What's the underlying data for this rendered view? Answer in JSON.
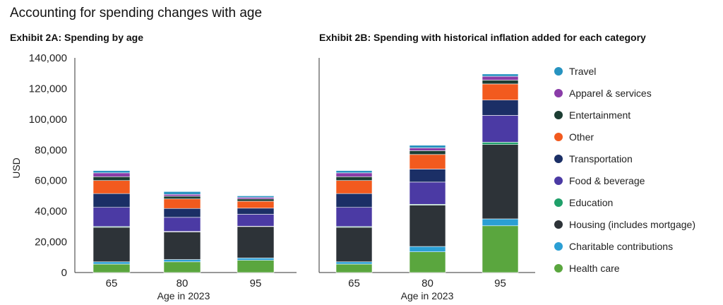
{
  "title": "Accounting for spending changes with age",
  "colors": {
    "Health care": "#5aa63e",
    "Charitable contributions": "#2b9fd4",
    "Housing (includes mortgage)": "#2d3338",
    "Education": "#1fa06a",
    "Food & beverage": "#4b3aa4",
    "Transportation": "#1b2f66",
    "Other": "#f25a1e",
    "Entertainment": "#1c3d33",
    "Apparel & services": "#8a3ca8",
    "Travel": "#2793c0"
  },
  "legend": [
    "Travel",
    "Apparel & services",
    "Entertainment",
    "Other",
    "Transportation",
    "Food & beverage",
    "Education",
    "Housing (includes mortgage)",
    "Charitable contributions",
    "Health care"
  ],
  "chart_data": [
    {
      "type": "bar",
      "stacked": true,
      "title": "Exhibit 2A: Spending by age",
      "xlabel": "Age in 2023",
      "ylabel": "USD",
      "ylim": [
        0,
        140000
      ],
      "yticks": [
        "0",
        "20,000",
        "40,000",
        "60,000",
        "80,000",
        "100,000",
        "120,000",
        "140,000"
      ],
      "categories": [
        "65",
        "80",
        "95"
      ],
      "series": [
        {
          "name": "Health care",
          "values": [
            5500,
            7000,
            8000
          ]
        },
        {
          "name": "Charitable contributions",
          "values": [
            1500,
            1500,
            1500
          ]
        },
        {
          "name": "Housing (includes mortgage)",
          "values": [
            22500,
            18000,
            20500
          ]
        },
        {
          "name": "Education",
          "values": [
            500,
            300,
            200
          ]
        },
        {
          "name": "Food & beverage",
          "values": [
            12500,
            9200,
            7800
          ]
        },
        {
          "name": "Transportation",
          "values": [
            9000,
            5800,
            4000
          ]
        },
        {
          "name": "Other",
          "values": [
            8500,
            6200,
            4500
          ]
        },
        {
          "name": "Entertainment",
          "values": [
            2500,
            1800,
            1500
          ]
        },
        {
          "name": "Apparel & services",
          "values": [
            2500,
            1200,
            1000
          ]
        },
        {
          "name": "Travel",
          "values": [
            1500,
            1800,
            1000
          ]
        }
      ]
    },
    {
      "type": "bar",
      "stacked": true,
      "title": "Exhibit 2B: Spending with historical inflation added for each category",
      "xlabel": "Age in 2023",
      "ylim": [
        0,
        140000
      ],
      "categories": [
        "65",
        "80",
        "95"
      ],
      "series": [
        {
          "name": "Health care",
          "values": [
            5500,
            13500,
            30500
          ]
        },
        {
          "name": "Charitable contributions",
          "values": [
            1500,
            3500,
            4500
          ]
        },
        {
          "name": "Housing (includes mortgage)",
          "values": [
            22500,
            27000,
            48500
          ]
        },
        {
          "name": "Education",
          "values": [
            500,
            500,
            1500
          ]
        },
        {
          "name": "Food & beverage",
          "values": [
            12500,
            14500,
            17500
          ]
        },
        {
          "name": "Transportation",
          "values": [
            9000,
            8500,
            10000
          ]
        },
        {
          "name": "Other",
          "values": [
            8500,
            9500,
            10500
          ]
        },
        {
          "name": "Entertainment",
          "values": [
            2500,
            2500,
            2500
          ]
        },
        {
          "name": "Apparel & services",
          "values": [
            2500,
            1800,
            2500
          ]
        },
        {
          "name": "Travel",
          "values": [
            1500,
            1700,
            1500
          ]
        }
      ]
    }
  ]
}
